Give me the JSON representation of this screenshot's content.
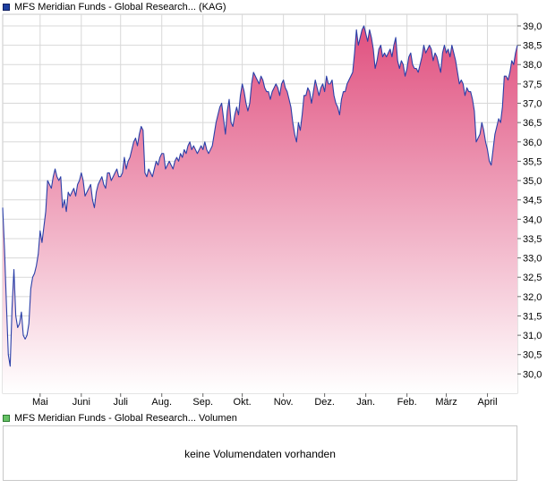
{
  "legend_main": "MFS Meridian Funds - Global Research... (KAG)",
  "legend_volume": "MFS Meridian Funds - Global Research... Volumen",
  "volume_message": "keine Volumendaten vorhanden",
  "colors": {
    "line": "#2a3fa8",
    "fill_top": "#e0507f",
    "fill_bottom": "#ffffff",
    "grid": "#d8d8d8",
    "frame": "#c8c8c8"
  },
  "chart_data": {
    "type": "area",
    "ylim": [
      29.5,
      39.3
    ],
    "y_ticks": [
      "30,0",
      "30,5",
      "31,0",
      "31,5",
      "32,0",
      "32,5",
      "33,0",
      "33,5",
      "34,0",
      "34,5",
      "35,0",
      "35,5",
      "36,0",
      "36,5",
      "37,0",
      "37,5",
      "38,0",
      "38,5",
      "39,0"
    ],
    "x_ticks": [
      "Mai",
      "Juni",
      "Juli",
      "Aug.",
      "Sep.",
      "Okt.",
      "Nov.",
      "Dez.",
      "Jan.",
      "Feb.",
      "März",
      "April"
    ],
    "x_tick_index": [
      20,
      42,
      63,
      85,
      107,
      128,
      150,
      172,
      194,
      216,
      237,
      259
    ],
    "grid": true,
    "values": [
      34.3,
      33.2,
      31.8,
      30.5,
      30.2,
      31.7,
      32.7,
      31.5,
      31.2,
      31.3,
      31.6,
      31.0,
      30.9,
      31.0,
      31.3,
      32.2,
      32.5,
      32.6,
      32.8,
      33.1,
      33.7,
      33.4,
      33.8,
      34.2,
      35.0,
      34.9,
      34.8,
      35.1,
      35.3,
      35.1,
      35.0,
      35.1,
      34.3,
      34.5,
      34.2,
      34.7,
      34.6,
      34.7,
      34.8,
      34.6,
      34.9,
      35.0,
      35.2,
      35.0,
      34.6,
      34.7,
      34.8,
      34.9,
      34.5,
      34.3,
      34.7,
      34.9,
      35.0,
      35.1,
      34.9,
      34.8,
      35.2,
      35.2,
      35.0,
      35.1,
      35.2,
      35.3,
      35.1,
      35.1,
      35.2,
      35.6,
      35.3,
      35.5,
      35.6,
      35.8,
      36.0,
      36.1,
      35.9,
      36.2,
      36.4,
      36.3,
      35.2,
      35.1,
      35.3,
      35.2,
      35.1,
      35.3,
      35.5,
      35.4,
      35.6,
      35.7,
      35.7,
      35.3,
      35.4,
      35.5,
      35.4,
      35.3,
      35.5,
      35.6,
      35.5,
      35.7,
      35.6,
      35.8,
      35.7,
      35.9,
      36.0,
      35.8,
      35.9,
      35.8,
      35.7,
      35.8,
      35.9,
      35.8,
      36.0,
      35.8,
      35.7,
      35.8,
      35.9,
      36.2,
      36.5,
      36.7,
      36.9,
      37.0,
      36.6,
      36.2,
      36.8,
      37.1,
      36.5,
      36.4,
      36.7,
      36.9,
      36.7,
      37.2,
      37.5,
      37.3,
      37.0,
      36.8,
      37.0,
      37.5,
      37.8,
      37.7,
      37.6,
      37.5,
      37.7,
      37.6,
      37.4,
      37.3,
      37.3,
      37.1,
      37.3,
      37.4,
      37.5,
      37.4,
      37.2,
      37.5,
      37.6,
      37.4,
      37.3,
      37.1,
      36.9,
      36.5,
      36.2,
      36.0,
      36.5,
      36.3,
      36.7,
      37.2,
      37.2,
      37.4,
      37.3,
      37.0,
      37.3,
      37.6,
      37.4,
      37.2,
      37.4,
      37.5,
      37.3,
      37.7,
      37.5,
      37.5,
      37.6,
      37.2,
      37.0,
      36.9,
      36.7,
      37.1,
      37.3,
      37.3,
      37.5,
      37.6,
      37.7,
      37.8,
      38.3,
      38.9,
      38.5,
      38.7,
      38.9,
      39.0,
      38.8,
      38.6,
      38.9,
      38.7,
      38.4,
      37.9,
      38.1,
      38.4,
      38.5,
      38.2,
      38.3,
      38.2,
      38.3,
      38.4,
      38.2,
      38.5,
      38.7,
      38.1,
      37.9,
      38.1,
      38.0,
      37.7,
      37.9,
      38.2,
      38.3,
      38.0,
      37.9,
      37.9,
      37.8,
      38.0,
      38.2,
      38.5,
      38.3,
      38.4,
      38.5,
      38.4,
      38.1,
      38.3,
      38.2,
      38.0,
      37.8,
      38.3,
      38.5,
      38.3,
      38.4,
      38.2,
      38.5,
      38.3,
      38.1,
      37.8,
      37.5,
      37.6,
      37.5,
      37.2,
      37.4,
      37.3,
      37.3,
      37.1,
      36.8,
      36.0,
      36.1,
      36.2,
      36.5,
      36.3,
      36.0,
      35.8,
      35.5,
      35.4,
      35.8,
      36.2,
      36.4,
      36.6,
      36.5,
      36.9,
      37.7,
      37.7,
      37.6,
      37.8,
      38.1,
      38.0,
      38.3,
      38.5
    ]
  }
}
